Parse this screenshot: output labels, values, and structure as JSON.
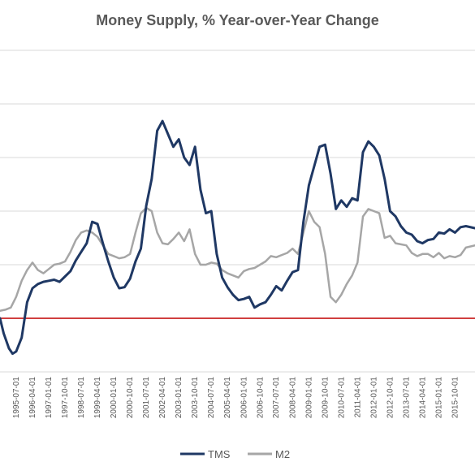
{
  "chart_data": {
    "type": "line",
    "title": "Money Supply, % Year-over-Year Change",
    "xlabel": "",
    "ylabel": "",
    "xlim": [
      "1994-10-01",
      "2016-09-01"
    ],
    "ylim": [
      -5,
      25
    ],
    "grid": true,
    "legend_position": "bottom",
    "x_tick_labels": [
      "1995-07-01",
      "1996-04-01",
      "1997-01-01",
      "1997-10-01",
      "1998-07-01",
      "1999-04-01",
      "2000-01-01",
      "2000-10-01",
      "2001-07-01",
      "2002-04-01",
      "2003-01-01",
      "2003-10-01",
      "2004-07-01",
      "2005-04-01",
      "2006-01-01",
      "2006-10-01",
      "2007-07-01",
      "2008-04-01",
      "2009-01-01",
      "2009-10-01",
      "2010-07-01",
      "2011-04-01",
      "2012-01-01",
      "2012-10-01",
      "2013-07-01",
      "2014-04-01",
      "2015-01-01",
      "2015-10-01"
    ],
    "reference_line": {
      "y": 0,
      "color": "#c00000"
    },
    "series": [
      {
        "name": "TMS",
        "color": "#1f3864",
        "points": [
          [
            "1994-10-01",
            0
          ],
          [
            "1994-12-01",
            -1.4
          ],
          [
            "1995-03-01",
            -2.8
          ],
          [
            "1995-05-01",
            -3.3
          ],
          [
            "1995-07-01",
            -3.1
          ],
          [
            "1995-10-01",
            -1.8
          ],
          [
            "1996-01-01",
            1.5
          ],
          [
            "1996-04-01",
            2.8
          ],
          [
            "1996-07-01",
            3.2
          ],
          [
            "1996-10-01",
            3.4
          ],
          [
            "1997-01-01",
            3.5
          ],
          [
            "1997-04-01",
            3.6
          ],
          [
            "1997-07-01",
            3.4
          ],
          [
            "1997-10-01",
            3.9
          ],
          [
            "1998-01-01",
            4.4
          ],
          [
            "1998-04-01",
            5.4
          ],
          [
            "1998-07-01",
            6.2
          ],
          [
            "1998-10-01",
            7.0
          ],
          [
            "1999-01-01",
            9.0
          ],
          [
            "1999-04-01",
            8.8
          ],
          [
            "1999-07-01",
            7.0
          ],
          [
            "1999-10-01",
            5.3
          ],
          [
            "2000-01-01",
            3.8
          ],
          [
            "2000-04-01",
            2.8
          ],
          [
            "2000-07-01",
            2.9
          ],
          [
            "2000-10-01",
            3.7
          ],
          [
            "2001-01-01",
            5.3
          ],
          [
            "2001-04-01",
            6.5
          ],
          [
            "2001-07-01",
            10.5
          ],
          [
            "2001-10-01",
            13.0
          ],
          [
            "2002-01-01",
            17.5
          ],
          [
            "2002-04-01",
            18.4
          ],
          [
            "2002-07-01",
            17.2
          ],
          [
            "2002-10-01",
            16.0
          ],
          [
            "2003-01-01",
            16.7
          ],
          [
            "2003-04-01",
            15.0
          ],
          [
            "2003-07-01",
            14.3
          ],
          [
            "2003-10-01",
            16.0
          ],
          [
            "2004-01-01",
            12.0
          ],
          [
            "2004-04-01",
            9.8
          ],
          [
            "2004-07-01",
            10.0
          ],
          [
            "2004-10-01",
            6.0
          ],
          [
            "2005-01-01",
            3.8
          ],
          [
            "2005-04-01",
            2.9
          ],
          [
            "2005-07-01",
            2.2
          ],
          [
            "2005-10-01",
            1.7
          ],
          [
            "2006-01-01",
            1.8
          ],
          [
            "2006-04-01",
            2.0
          ],
          [
            "2006-07-01",
            1.0
          ],
          [
            "2006-10-01",
            1.3
          ],
          [
            "2007-01-01",
            1.5
          ],
          [
            "2007-04-01",
            2.2
          ],
          [
            "2007-07-01",
            3.0
          ],
          [
            "2007-10-01",
            2.6
          ],
          [
            "2008-01-01",
            3.5
          ],
          [
            "2008-04-01",
            4.3
          ],
          [
            "2008-07-01",
            4.5
          ],
          [
            "2008-10-01",
            9.0
          ],
          [
            "2009-01-01",
            12.4
          ],
          [
            "2009-04-01",
            14.2
          ],
          [
            "2009-07-01",
            16.0
          ],
          [
            "2009-10-01",
            16.2
          ],
          [
            "2010-01-01",
            13.5
          ],
          [
            "2010-04-01",
            10.2
          ],
          [
            "2010-07-01",
            11.0
          ],
          [
            "2010-10-01",
            10.4
          ],
          [
            "2011-01-01",
            11.2
          ],
          [
            "2011-04-01",
            11.0
          ],
          [
            "2011-07-01",
            15.5
          ],
          [
            "2011-10-01",
            16.5
          ],
          [
            "2012-01-01",
            16.0
          ],
          [
            "2012-04-01",
            15.2
          ],
          [
            "2012-07-01",
            13.0
          ],
          [
            "2012-10-01",
            10.0
          ],
          [
            "2013-01-01",
            9.5
          ],
          [
            "2013-04-01",
            8.6
          ],
          [
            "2013-07-01",
            8.0
          ],
          [
            "2013-10-01",
            7.8
          ],
          [
            "2014-01-01",
            7.2
          ],
          [
            "2014-04-01",
            7.0
          ],
          [
            "2014-07-01",
            7.3
          ],
          [
            "2014-10-01",
            7.4
          ],
          [
            "2015-01-01",
            8.0
          ],
          [
            "2015-04-01",
            7.9
          ],
          [
            "2015-07-01",
            8.3
          ],
          [
            "2015-10-01",
            8.0
          ],
          [
            "2016-01-01",
            8.5
          ],
          [
            "2016-04-01",
            8.6
          ],
          [
            "2016-09-01",
            8.4
          ]
        ]
      },
      {
        "name": "M2",
        "color": "#a6a6a6",
        "points": [
          [
            "1994-10-01",
            0.7
          ],
          [
            "1995-01-01",
            0.8
          ],
          [
            "1995-04-01",
            1.0
          ],
          [
            "1995-07-01",
            2.0
          ],
          [
            "1995-10-01",
            3.5
          ],
          [
            "1996-01-01",
            4.5
          ],
          [
            "1996-04-01",
            5.2
          ],
          [
            "1996-07-01",
            4.5
          ],
          [
            "1996-10-01",
            4.2
          ],
          [
            "1997-01-01",
            4.6
          ],
          [
            "1997-04-01",
            5.0
          ],
          [
            "1997-07-01",
            5.1
          ],
          [
            "1997-10-01",
            5.3
          ],
          [
            "1998-01-01",
            6.2
          ],
          [
            "1998-04-01",
            7.3
          ],
          [
            "1998-07-01",
            8.0
          ],
          [
            "1998-10-01",
            8.2
          ],
          [
            "1999-01-01",
            8.0
          ],
          [
            "1999-04-01",
            7.6
          ],
          [
            "1999-07-01",
            6.8
          ],
          [
            "1999-10-01",
            6.0
          ],
          [
            "2000-01-01",
            5.8
          ],
          [
            "2000-04-01",
            5.6
          ],
          [
            "2000-07-01",
            5.7
          ],
          [
            "2000-10-01",
            6.0
          ],
          [
            "2001-01-01",
            8.0
          ],
          [
            "2001-04-01",
            9.8
          ],
          [
            "2001-07-01",
            10.3
          ],
          [
            "2001-10-01",
            10.0
          ],
          [
            "2002-01-01",
            8.0
          ],
          [
            "2002-04-01",
            7.0
          ],
          [
            "2002-07-01",
            6.9
          ],
          [
            "2002-10-01",
            7.4
          ],
          [
            "2003-01-01",
            8.0
          ],
          [
            "2003-04-01",
            7.2
          ],
          [
            "2003-07-01",
            8.3
          ],
          [
            "2003-10-01",
            6.0
          ],
          [
            "2004-01-01",
            5.0
          ],
          [
            "2004-04-01",
            5.0
          ],
          [
            "2004-07-01",
            5.2
          ],
          [
            "2004-10-01",
            5.1
          ],
          [
            "2005-01-01",
            4.5
          ],
          [
            "2005-04-01",
            4.2
          ],
          [
            "2005-07-01",
            4.0
          ],
          [
            "2005-10-01",
            3.8
          ],
          [
            "2006-01-01",
            4.4
          ],
          [
            "2006-04-01",
            4.6
          ],
          [
            "2006-07-01",
            4.7
          ],
          [
            "2006-10-01",
            5.0
          ],
          [
            "2007-01-01",
            5.3
          ],
          [
            "2007-04-01",
            5.8
          ],
          [
            "2007-07-01",
            5.7
          ],
          [
            "2007-10-01",
            5.9
          ],
          [
            "2008-01-01",
            6.1
          ],
          [
            "2008-04-01",
            6.5
          ],
          [
            "2008-07-01",
            6.0
          ],
          [
            "2008-10-01",
            8.0
          ],
          [
            "2009-01-01",
            10.0
          ],
          [
            "2009-04-01",
            9.0
          ],
          [
            "2009-07-01",
            8.5
          ],
          [
            "2009-10-01",
            6.0
          ],
          [
            "2010-01-01",
            2.0
          ],
          [
            "2010-04-01",
            1.5
          ],
          [
            "2010-07-01",
            2.2
          ],
          [
            "2010-10-01",
            3.2
          ],
          [
            "2011-01-01",
            4.0
          ],
          [
            "2011-04-01",
            5.2
          ],
          [
            "2011-07-01",
            9.5
          ],
          [
            "2011-10-01",
            10.2
          ],
          [
            "2012-01-01",
            10.0
          ],
          [
            "2012-04-01",
            9.8
          ],
          [
            "2012-07-01",
            7.5
          ],
          [
            "2012-10-01",
            7.7
          ],
          [
            "2013-01-01",
            7.0
          ],
          [
            "2013-04-01",
            6.9
          ],
          [
            "2013-07-01",
            6.8
          ],
          [
            "2013-10-01",
            6.1
          ],
          [
            "2014-01-01",
            5.8
          ],
          [
            "2014-04-01",
            6.0
          ],
          [
            "2014-07-01",
            6.0
          ],
          [
            "2014-10-01",
            5.7
          ],
          [
            "2015-01-01",
            6.1
          ],
          [
            "2015-04-01",
            5.6
          ],
          [
            "2015-07-01",
            5.8
          ],
          [
            "2015-10-01",
            5.7
          ],
          [
            "2016-01-01",
            5.9
          ],
          [
            "2016-04-01",
            6.6
          ],
          [
            "2016-09-01",
            6.8
          ]
        ]
      }
    ]
  }
}
